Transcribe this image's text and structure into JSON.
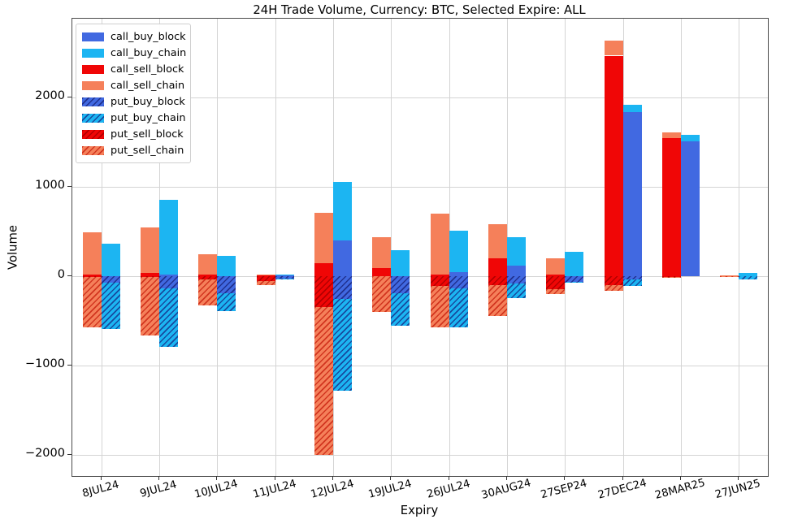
{
  "chart_data": {
    "type": "bar",
    "title": "24H Trade Volume, Currency: BTC, Selected Expire: ALL",
    "xlabel": "Expiry",
    "ylabel": "Volume",
    "grid": true,
    "legend_position": "upper-left",
    "ylim": [
      -2234,
      2884
    ],
    "yticks": [
      {
        "value": -2000,
        "label": "−2000"
      },
      {
        "value": -1000,
        "label": "−1000"
      },
      {
        "value": 0,
        "label": "0"
      },
      {
        "value": 1000,
        "label": "1000"
      },
      {
        "value": 2000,
        "label": "2000"
      }
    ],
    "categories": [
      "8JUL24",
      "9JUL24",
      "10JUL24",
      "11JUL24",
      "12JUL24",
      "19JUL24",
      "26JUL24",
      "30AUG24",
      "27SEP24",
      "27DEC24",
      "28MAR25",
      "27JUN25"
    ],
    "colors": {
      "block_blue": "#4169E1",
      "chain_cyan": "#1CB5F2",
      "block_red": "#F00606",
      "chain_coral": "#F5805A",
      "hatch_on_blue": "#20318f",
      "hatch_on_cyan": "#174a9e",
      "hatch_on_red": "#b30000",
      "hatch_on_coral": "#d2351f"
    },
    "series": [
      {
        "name": "call_buy_block",
        "stack": "buy",
        "hatch": false,
        "color": "block_blue",
        "values": [
          0,
          20,
          0,
          20,
          400,
          0,
          45,
          120,
          0,
          1840,
          1510,
          0
        ]
      },
      {
        "name": "call_buy_chain",
        "stack": "buy",
        "hatch": false,
        "color": "chain_cyan",
        "values": [
          365,
          840,
          230,
          5,
          660,
          290,
          465,
          320,
          275,
          80,
          75,
          35
        ]
      },
      {
        "name": "call_sell_block",
        "stack": "sell",
        "hatch": false,
        "color": "block_red",
        "values": [
          20,
          40,
          20,
          15,
          150,
          90,
          25,
          205,
          25,
          2470,
          1545,
          0
        ]
      },
      {
        "name": "call_sell_chain",
        "stack": "sell",
        "hatch": false,
        "color": "chain_coral",
        "values": [
          475,
          510,
          230,
          5,
          560,
          350,
          680,
          380,
          175,
          165,
          70,
          10
        ]
      },
      {
        "name": "put_buy_block",
        "stack": "buy",
        "hatch": true,
        "color": "block_blue",
        "values": [
          -70,
          -135,
          -190,
          -25,
          -250,
          -190,
          -130,
          -75,
          -65,
          -30,
          0,
          0
        ]
      },
      {
        "name": "put_buy_chain",
        "stack": "buy",
        "hatch": true,
        "color": "chain_cyan",
        "values": [
          -520,
          -655,
          -195,
          -10,
          -1030,
          -360,
          -440,
          -170,
          -10,
          -75,
          0,
          -30
        ]
      },
      {
        "name": "put_sell_block",
        "stack": "sell",
        "hatch": true,
        "color": "block_red",
        "values": [
          -10,
          -10,
          -35,
          -50,
          -340,
          0,
          -110,
          -95,
          -140,
          -100,
          -10,
          0
        ]
      },
      {
        "name": "put_sell_chain",
        "stack": "sell",
        "hatch": true,
        "color": "chain_coral",
        "values": [
          -560,
          -650,
          -290,
          -50,
          -1660,
          -400,
          -465,
          -350,
          -60,
          -60,
          -10,
          -10
        ]
      }
    ]
  }
}
